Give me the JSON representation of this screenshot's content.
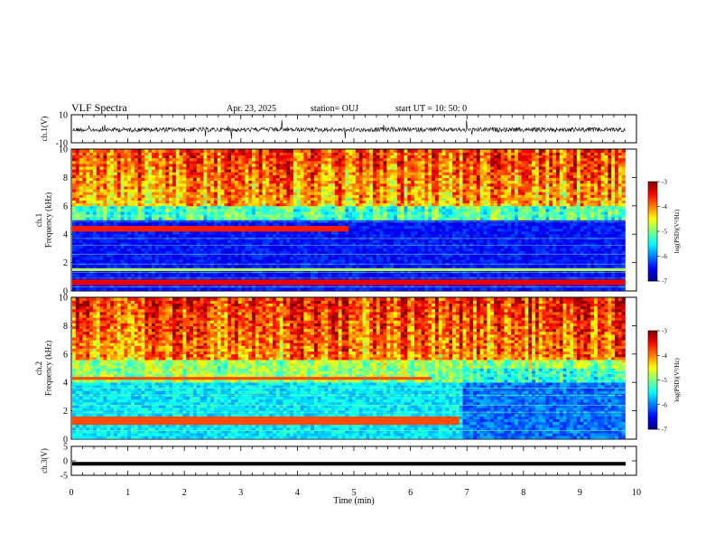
{
  "header": {
    "title": "VLF Spectra",
    "date": "Apr. 23, 2025",
    "station": "station= OUJ",
    "start": "start  UT =   10: 50: 0"
  },
  "chart_data": [
    {
      "type": "line",
      "name": "ch1-waveform",
      "ylabel": "ch.1(V)",
      "ylim": [
        -10,
        10
      ],
      "yticks": [
        "10",
        "-10"
      ],
      "xlim": [
        0,
        10
      ],
      "baseline": 0
    },
    {
      "type": "heatmap",
      "name": "ch1-spectrogram",
      "ylabel": "ch.1\nFrequency (kHz)",
      "ylim": [
        0,
        10
      ],
      "yticks": [
        "0",
        "2",
        "4",
        "6",
        "8",
        "10"
      ],
      "xlim": [
        0,
        10
      ],
      "data_end_min": 9.8,
      "colorbar": {
        "label": "log(PSD)(V²/Hz)",
        "range": [
          -7,
          -3
        ],
        "ticks": [
          "-3",
          "-4",
          "-5",
          "-6",
          "-7"
        ]
      }
    },
    {
      "type": "heatmap",
      "name": "ch2-spectrogram",
      "ylabel": "ch.2\nFrequency (kHz)",
      "ylim": [
        0,
        10
      ],
      "yticks": [
        "0",
        "2",
        "4",
        "6",
        "8",
        "10"
      ],
      "xlim": [
        0,
        10
      ],
      "data_end_min": 9.8,
      "colorbar": {
        "label": "log(PSD)(V²/Hz)",
        "range": [
          -7,
          -3
        ],
        "ticks": [
          "-3",
          "-4",
          "-5",
          "-6",
          "-7"
        ]
      }
    },
    {
      "type": "line",
      "name": "ch3-waveform",
      "ylabel": "ch.3(V)",
      "ylim": [
        -5,
        5
      ],
      "yticks": [
        "5",
        "0",
        "-5"
      ],
      "xlim": [
        0,
        10
      ],
      "baseline": -1
    }
  ],
  "xaxis": {
    "label": "Time (min)",
    "ticks": [
      "0",
      "1",
      "2",
      "3",
      "4",
      "5",
      "6",
      "7",
      "8",
      "9",
      "10"
    ]
  }
}
